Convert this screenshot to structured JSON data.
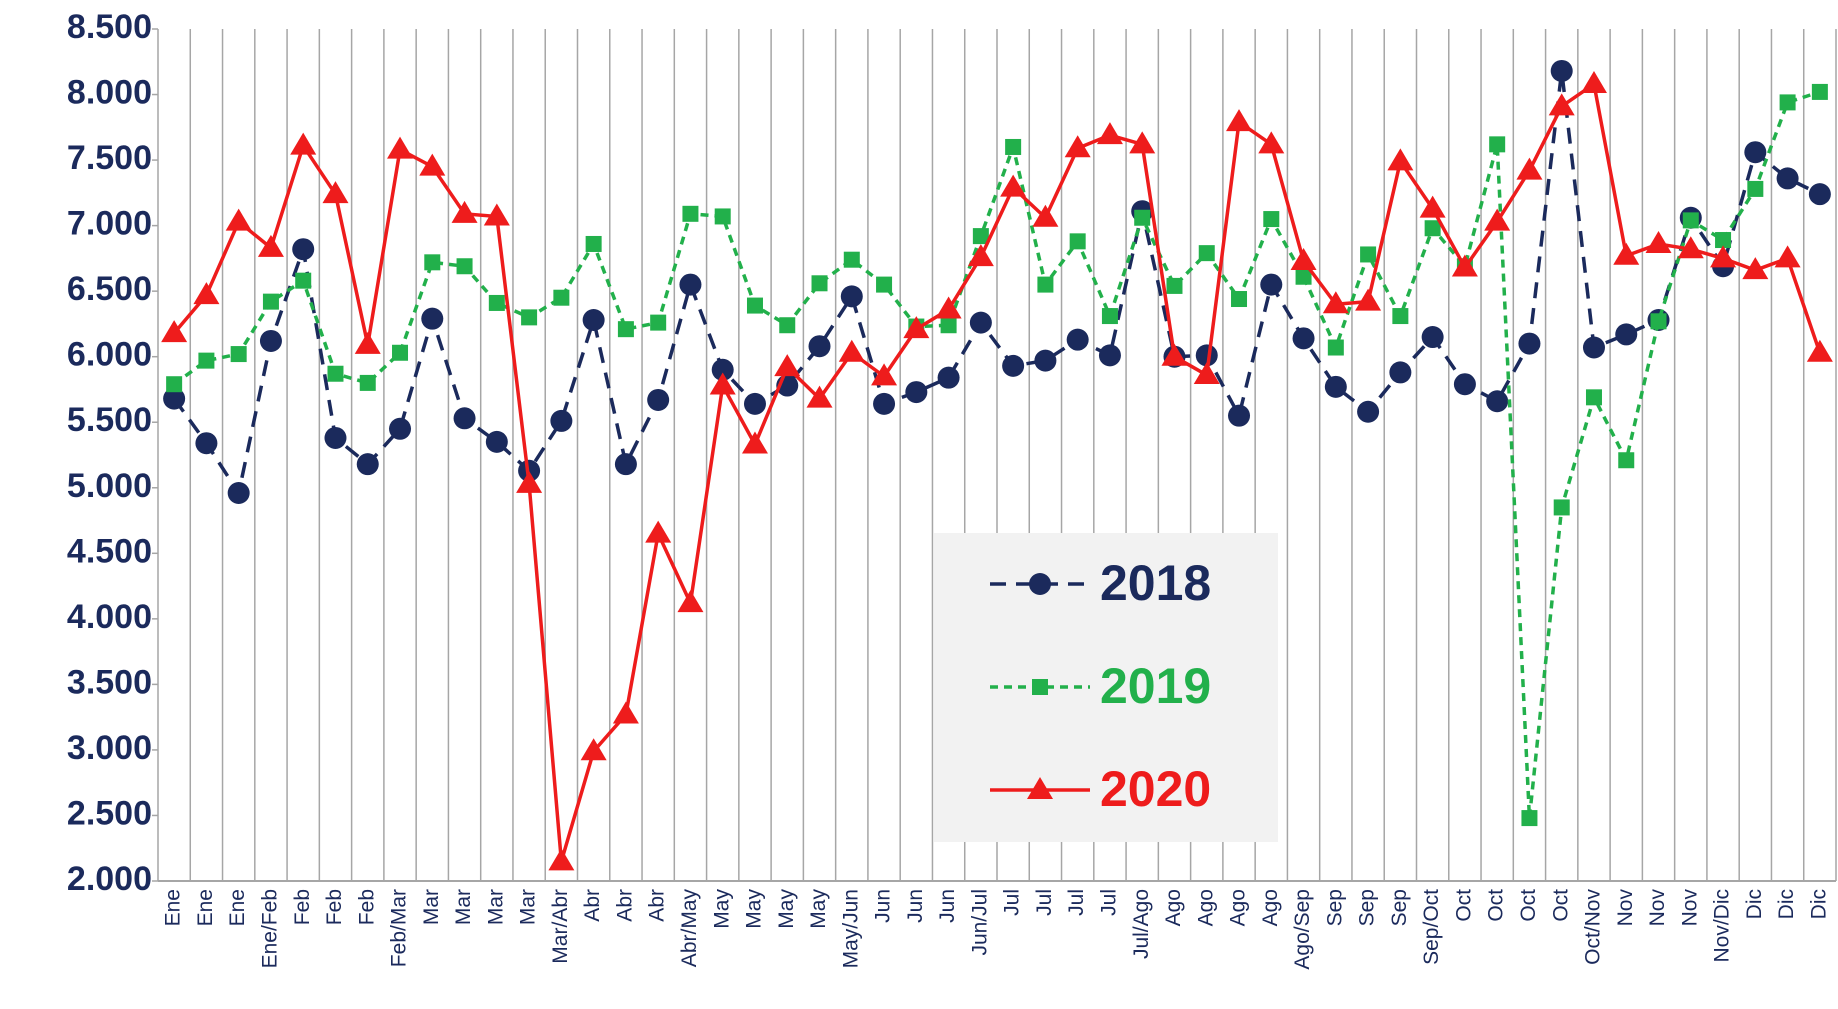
{
  "chart_data": {
    "type": "line",
    "categories": [
      "Ene",
      "Ene",
      "Ene",
      "Ene/Feb",
      "Feb",
      "Feb",
      "Feb",
      "Feb/Mar",
      "Mar",
      "Mar",
      "Mar",
      "Mar",
      "Mar/Abr",
      "Abr",
      "Abr",
      "Abr",
      "Abr/May",
      "May",
      "May",
      "May",
      "May",
      "May/Jun",
      "Jun",
      "Jun",
      "Jun",
      "Jun/Jul",
      "Jul",
      "Jul",
      "Jul",
      "Jul",
      "Jul/Ago",
      "Ago",
      "Ago",
      "Ago",
      "Ago",
      "Ago/Sep",
      "Sep",
      "Sep",
      "Sep",
      "Sep/Oct",
      "Oct",
      "Oct",
      "Oct",
      "Oct",
      "Oct/Nov",
      "Nov",
      "Nov",
      "Nov",
      "Nov/Dic",
      "Dic",
      "Dic",
      "Dic"
    ],
    "series": [
      {
        "name": "2018",
        "color": "#1b2a5c",
        "dash": "16 10",
        "marker": "circle",
        "values": [
          5680,
          5340,
          4960,
          6120,
          6820,
          5380,
          5180,
          5450,
          6290,
          5530,
          5350,
          5130,
          5510,
          6280,
          5180,
          5670,
          6550,
          5900,
          5640,
          5780,
          6080,
          6460,
          5640,
          5730,
          5840,
          6260,
          5930,
          5970,
          6130,
          6010,
          7110,
          6000,
          6010,
          5550,
          6550,
          6140,
          5770,
          5580,
          5880,
          6150,
          5790,
          5660,
          6100,
          8180,
          6070,
          6170,
          6280,
          7060,
          6690,
          7560,
          7360,
          7240
        ]
      },
      {
        "name": "2019",
        "color": "#22b04b",
        "dash": "8 6",
        "marker": "square",
        "values": [
          5790,
          5970,
          6020,
          6420,
          6580,
          5870,
          5800,
          6030,
          6720,
          6690,
          6410,
          6300,
          6450,
          6860,
          6210,
          6260,
          7090,
          7070,
          6390,
          6240,
          6560,
          6740,
          6550,
          6230,
          6240,
          6920,
          7600,
          6550,
          6880,
          6310,
          7060,
          6540,
          6790,
          6440,
          7050,
          6610,
          6070,
          6780,
          6310,
          6980,
          6690,
          7620,
          2480,
          4850,
          5690,
          5210,
          6270,
          7040,
          6890,
          7280,
          7940,
          8020
        ]
      },
      {
        "name": "2020",
        "color": "#ee1c1c",
        "dash": "none",
        "marker": "triangle",
        "values": [
          6180,
          6470,
          7030,
          6830,
          7610,
          7240,
          6090,
          7580,
          7450,
          7090,
          7070,
          5030,
          2150,
          2990,
          3270,
          4650,
          4120,
          5780,
          5330,
          5920,
          5680,
          6030,
          5850,
          6210,
          6360,
          6760,
          7290,
          7060,
          7590,
          7690,
          7620,
          6000,
          5860,
          7790,
          7620,
          6730,
          6400,
          6420,
          7490,
          7130,
          6680,
          7030,
          7420,
          7910,
          8080,
          6770,
          6860,
          6820,
          6750,
          6660,
          6750,
          6030
        ]
      }
    ],
    "ylim": [
      2000,
      8500
    ],
    "yticks": [
      {
        "value": 2000,
        "label": "2.000"
      },
      {
        "value": 2500,
        "label": "2.500"
      },
      {
        "value": 3000,
        "label": "3.000"
      },
      {
        "value": 3500,
        "label": "3.500"
      },
      {
        "value": 4000,
        "label": "4.000"
      },
      {
        "value": 4500,
        "label": "4.500"
      },
      {
        "value": 5000,
        "label": "5.000"
      },
      {
        "value": 5500,
        "label": "5.500"
      },
      {
        "value": 6000,
        "label": "6.000"
      },
      {
        "value": 6500,
        "label": "6.500"
      },
      {
        "value": 7000,
        "label": "7.000"
      },
      {
        "value": 7500,
        "label": "7.500"
      },
      {
        "value": 8000,
        "label": "8.000"
      },
      {
        "value": 8500,
        "label": "8.500"
      }
    ],
    "legend": "center"
  }
}
